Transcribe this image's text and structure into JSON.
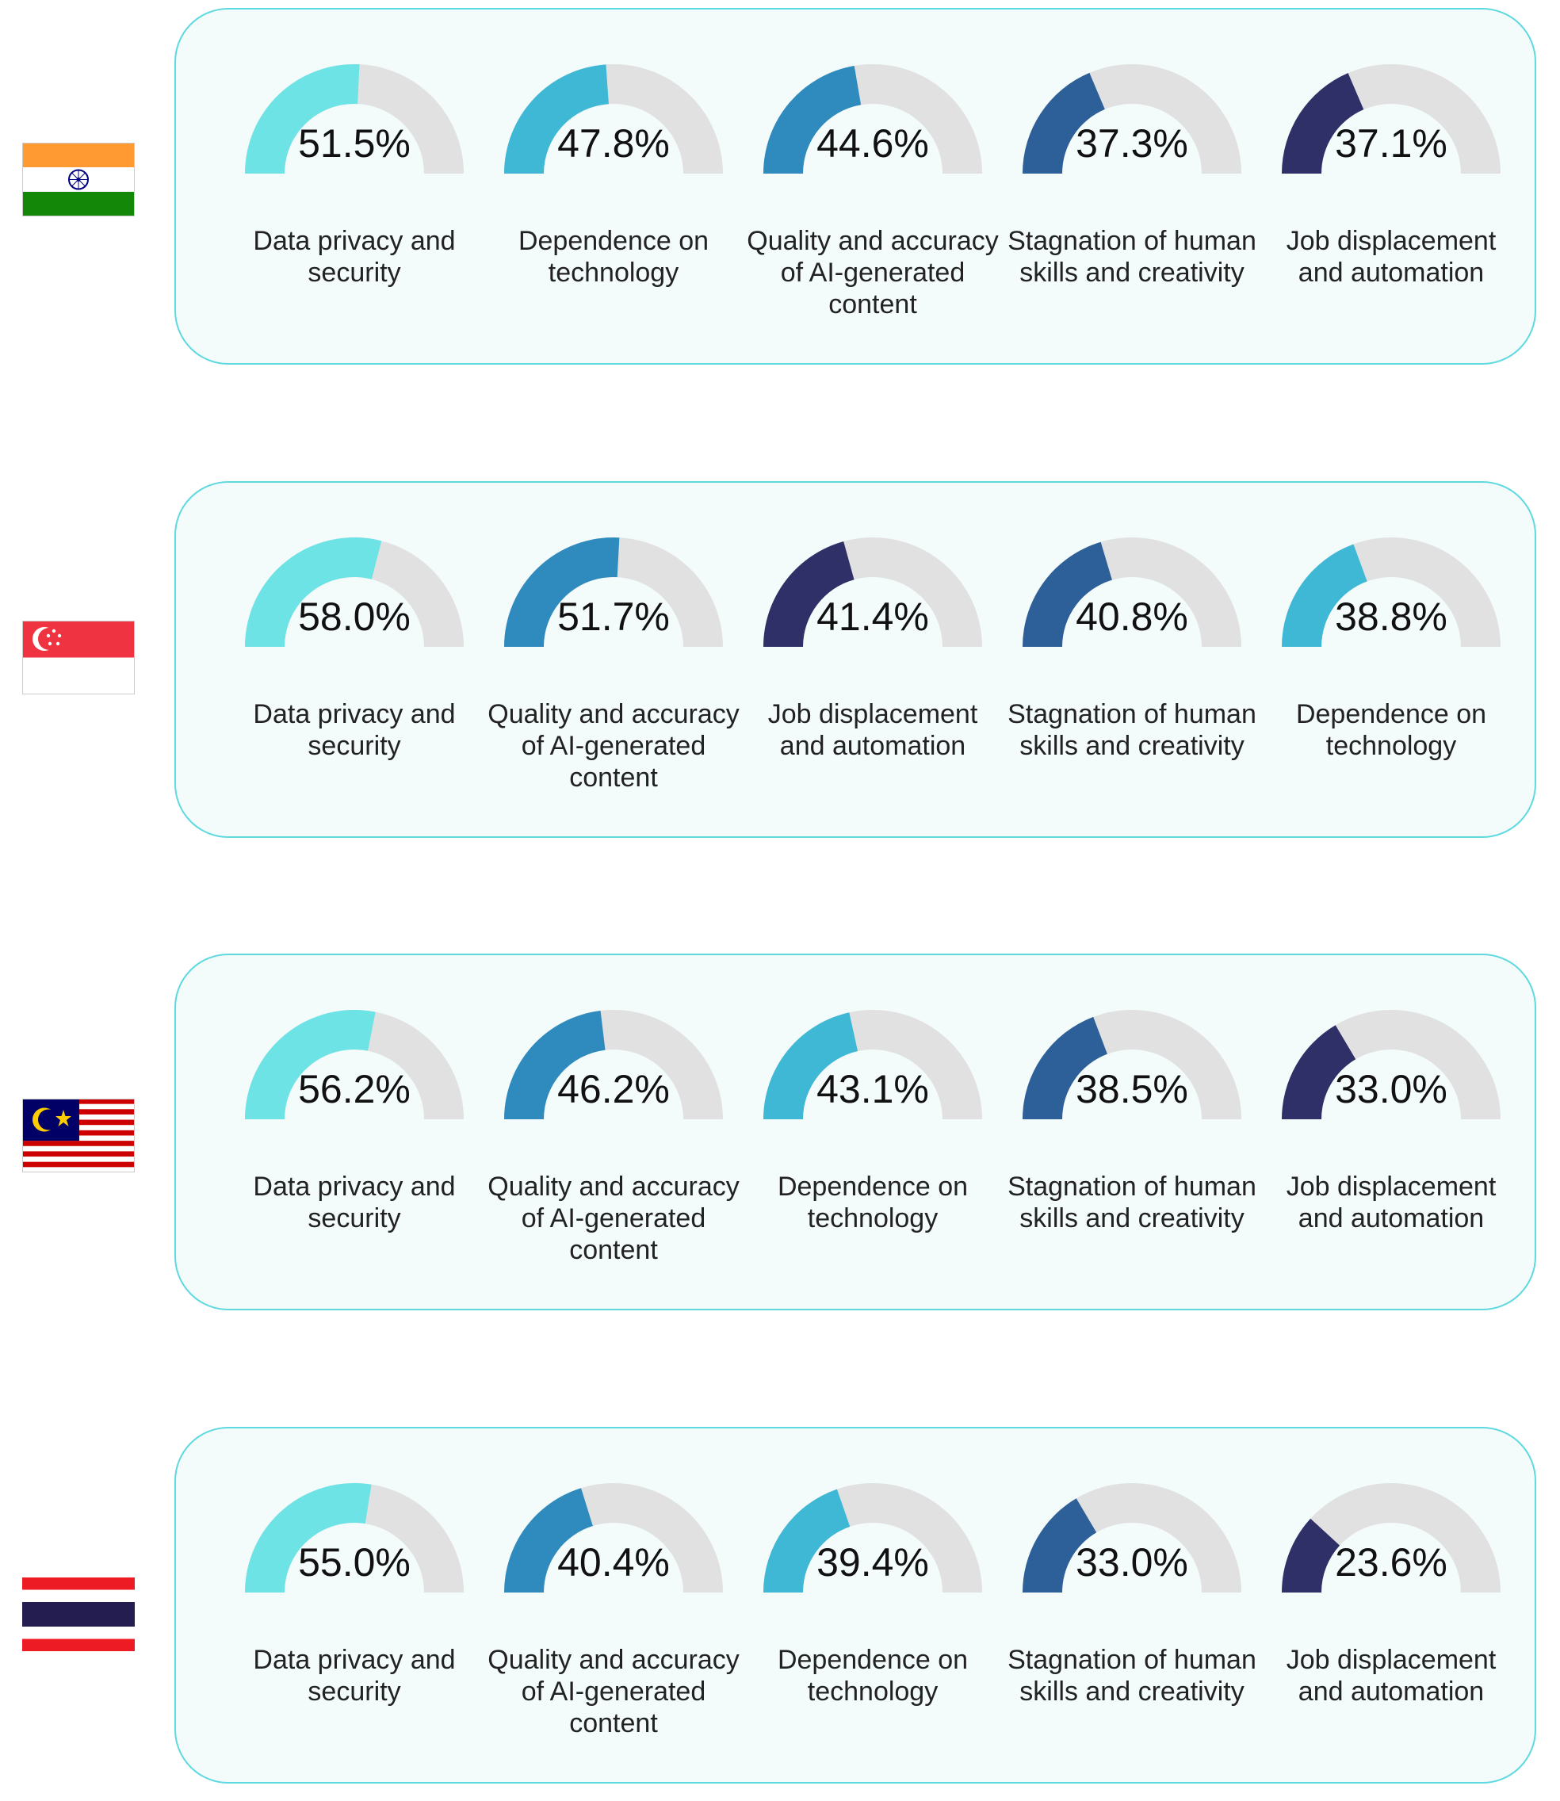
{
  "colors": {
    "track": "#e1e1e1",
    "card_border": "#5fd9e0",
    "card_bg": "#f3fbfb",
    "category_colors": {
      "Data privacy and security": "#6ee3e6",
      "Dependence on technology": "#3fb8d6",
      "Quality and accuracy of AI-generated content": "#2f8bbd",
      "Stagnation of human skills and creativity": "#2d5f98",
      "Job displacement and automation": "#2e3067"
    }
  },
  "flags": [
    "india-flag-icon",
    "singapore-flag-icon",
    "malaysia-flag-icon",
    "thailand-flag-icon"
  ],
  "chart_data": [
    {
      "type": "gauge",
      "flag": "india-flag-icon",
      "series": [
        {
          "label": "Data privacy and security",
          "value": 51.5,
          "value_label": "51.5%"
        },
        {
          "label": "Dependence on technology",
          "value": 47.8,
          "value_label": "47.8%"
        },
        {
          "label": "Quality and accuracy of AI-generated content",
          "value": 44.6,
          "value_label": "44.6%"
        },
        {
          "label": "Stagnation of human skills and creativity",
          "value": 37.3,
          "value_label": "37.3%"
        },
        {
          "label": "Job displacement and automation",
          "value": 37.1,
          "value_label": "37.1%"
        }
      ]
    },
    {
      "type": "gauge",
      "flag": "singapore-flag-icon",
      "series": [
        {
          "label": "Data privacy and security",
          "value": 58.0,
          "value_label": "58.0%"
        },
        {
          "label": "Quality and accuracy of AI-generated content",
          "value": 51.7,
          "value_label": "51.7%"
        },
        {
          "label": "Job displacement and automation",
          "value": 41.4,
          "value_label": "41.4%"
        },
        {
          "label": "Stagnation of human skills and creativity",
          "value": 40.8,
          "value_label": "40.8%"
        },
        {
          "label": "Dependence on technology",
          "value": 38.8,
          "value_label": "38.8%"
        }
      ]
    },
    {
      "type": "gauge",
      "flag": "malaysia-flag-icon",
      "series": [
        {
          "label": "Data privacy and security",
          "value": 56.2,
          "value_label": "56.2%"
        },
        {
          "label": "Quality and accuracy of AI-generated content",
          "value": 46.2,
          "value_label": "46.2%"
        },
        {
          "label": "Dependence on technology",
          "value": 43.1,
          "value_label": "43.1%"
        },
        {
          "label": "Stagnation of human skills and creativity",
          "value": 38.5,
          "value_label": "38.5%"
        },
        {
          "label": "Job displacement and automation",
          "value": 33.0,
          "value_label": "33.0%"
        }
      ]
    },
    {
      "type": "gauge",
      "flag": "thailand-flag-icon",
      "series": [
        {
          "label": "Data privacy and security",
          "value": 55.0,
          "value_label": "55.0%"
        },
        {
          "label": "Quality and accuracy of AI-generated content",
          "value": 40.4,
          "value_label": "40.4%"
        },
        {
          "label": "Dependence on technology",
          "value": 39.4,
          "value_label": "39.4%"
        },
        {
          "label": "Stagnation of human skills and creativity",
          "value": 33.0,
          "value_label": "33.0%"
        },
        {
          "label": "Job displacement and automation",
          "value": 23.6,
          "value_label": "23.6%"
        }
      ]
    }
  ]
}
